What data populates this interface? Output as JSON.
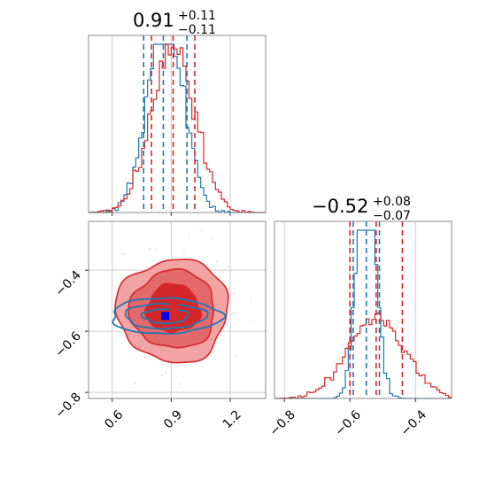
{
  "colors": {
    "blue": "#1f77b4",
    "red": "#d62728",
    "red_light": "#f2a3a3",
    "red_mid": "#e26a6a",
    "marker_blue": "#0000ff",
    "grid": "#cccccc",
    "scatter": "#f4c0c8"
  },
  "titles": {
    "param1": {
      "value": "0.91",
      "plus": "+0.11",
      "minus": "−0.11"
    },
    "param2": {
      "value": "−0.52",
      "plus": "+0.08",
      "minus": "−0.07"
    }
  },
  "chart_data": [
    {
      "type": "histogram",
      "panel": "top-left marginal",
      "title": "0.91 +0.11 -0.11",
      "xlim": [
        0.48,
        1.38
      ],
      "x_ticks": [
        0.6,
        0.9,
        1.2
      ],
      "grid": true,
      "series": [
        {
          "name": "",
          "color": "#1f77b4",
          "quantiles": [
            0.76,
            0.86,
            0.98
          ]
        },
        {
          "name": "",
          "color": "#d62728",
          "quantiles": [
            0.8,
            0.91,
            1.02
          ]
        }
      ]
    },
    {
      "type": "contour",
      "panel": "bottom-left joint",
      "xlim": [
        0.48,
        1.38
      ],
      "ylim": [
        -0.82,
        -0.24
      ],
      "x_ticks": [
        0.6,
        0.9,
        1.2
      ],
      "x_tick_labels": [
        "0.6",
        "0.9",
        "1.2"
      ],
      "y_ticks": [
        -0.4,
        -0.6,
        -0.8
      ],
      "y_tick_labels": [
        "−0.4",
        "−0.6",
        "−0.8"
      ],
      "grid": true,
      "markers": [
        {
          "color": "#0000ff",
          "x": 0.87,
          "y": -0.55
        },
        {
          "color": "#d62728",
          "x": 0.91,
          "y": -0.52
        }
      ]
    },
    {
      "type": "histogram",
      "panel": "bottom-right marginal",
      "title": "-0.52 +0.08 -0.07",
      "xlim": [
        -0.83,
        -0.29
      ],
      "x_ticks": [
        -0.8,
        -0.6,
        -0.4
      ],
      "x_tick_labels": [
        "−0.8",
        "−0.6",
        "−0.4"
      ],
      "grid": true,
      "series": [
        {
          "name": "",
          "color": "#1f77b4",
          "quantiles": [
            -0.59,
            -0.55,
            -0.51
          ]
        },
        {
          "name": "",
          "color": "#d62728",
          "quantiles": [
            -0.6,
            -0.52,
            -0.44
          ]
        }
      ]
    }
  ]
}
